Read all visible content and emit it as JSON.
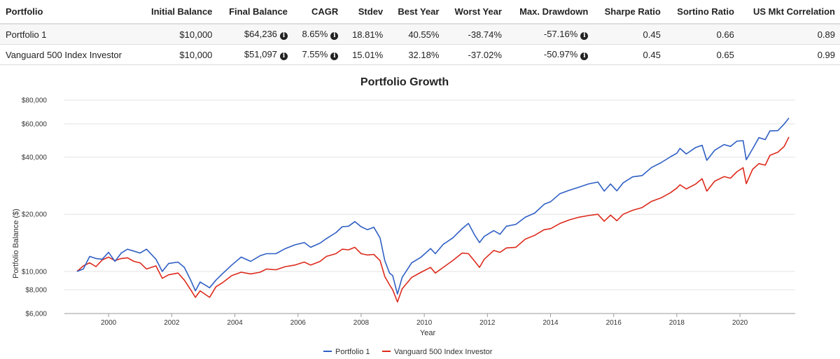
{
  "table": {
    "headers": [
      "Portfolio",
      "Initial Balance",
      "Final Balance",
      "CAGR",
      "Stdev",
      "Best Year",
      "Worst Year",
      "Max. Drawdown",
      "Sharpe Ratio",
      "Sortino Ratio",
      "US Mkt Correlation"
    ],
    "rows": [
      {
        "name": "Portfolio 1",
        "initial": "$10,000",
        "final": "$64,236",
        "cagr": "8.65%",
        "stdev": "18.81%",
        "best": "40.55%",
        "worst": "-38.74%",
        "maxdd": "-57.16%",
        "sharpe": "0.45",
        "sortino": "0.66",
        "corr": "0.89"
      },
      {
        "name": "Vanguard 500 Index Investor",
        "initial": "$10,000",
        "final": "$51,097",
        "cagr": "7.55%",
        "stdev": "15.01%",
        "best": "32.18%",
        "worst": "-37.02%",
        "maxdd": "-50.97%",
        "sharpe": "0.45",
        "sortino": "0.65",
        "corr": "0.99"
      }
    ],
    "info_glyph": "i"
  },
  "chart_data": {
    "type": "line",
    "title": "Portfolio Growth",
    "xlabel": "Year",
    "ylabel": "Portfolio Balance ($)",
    "yscale": "log",
    "ylim": [
      6000,
      80000
    ],
    "xlim": [
      1998.6,
      2021.75
    ],
    "yticks": [
      6000,
      8000,
      10000,
      20000,
      40000,
      60000,
      80000
    ],
    "ytick_labels": [
      "$6,000",
      "$8,000",
      "$10,000",
      "$20,000",
      "$40,000",
      "$60,000",
      "$80,000"
    ],
    "xticks": [
      2000,
      2002,
      2004,
      2006,
      2008,
      2010,
      2012,
      2014,
      2016,
      2018,
      2020
    ],
    "xtick_labels": [
      "2000",
      "2002",
      "2004",
      "2006",
      "2008",
      "2010",
      "2012",
      "2014",
      "2016",
      "2018",
      "2020"
    ],
    "legend_position": "bottom-center",
    "series": [
      {
        "name": "Portfolio 1",
        "color": "#2f5fc4",
        "points": [
          [
            1999.0,
            10000
          ],
          [
            1999.2,
            10300
          ],
          [
            1999.4,
            12000
          ],
          [
            1999.6,
            11700
          ],
          [
            1999.8,
            11600
          ],
          [
            2000.0,
            12600
          ],
          [
            2000.2,
            11300
          ],
          [
            2000.4,
            12500
          ],
          [
            2000.6,
            13100
          ],
          [
            2000.8,
            12800
          ],
          [
            2001.0,
            12500
          ],
          [
            2001.2,
            13100
          ],
          [
            2001.5,
            11600
          ],
          [
            2001.7,
            10000
          ],
          [
            2001.9,
            11000
          ],
          [
            2002.2,
            11200
          ],
          [
            2002.4,
            10500
          ],
          [
            2002.6,
            9000
          ],
          [
            2002.75,
            7900
          ],
          [
            2002.9,
            8800
          ],
          [
            2003.2,
            8200
          ],
          [
            2003.4,
            9000
          ],
          [
            2003.6,
            9700
          ],
          [
            2003.9,
            10800
          ],
          [
            2004.2,
            11900
          ],
          [
            2004.5,
            11300
          ],
          [
            2004.8,
            12100
          ],
          [
            2005.0,
            12400
          ],
          [
            2005.3,
            12400
          ],
          [
            2005.6,
            13200
          ],
          [
            2005.9,
            13800
          ],
          [
            2006.2,
            14200
          ],
          [
            2006.4,
            13400
          ],
          [
            2006.7,
            14100
          ],
          [
            2006.9,
            14900
          ],
          [
            2007.2,
            16000
          ],
          [
            2007.4,
            17200
          ],
          [
            2007.6,
            17300
          ],
          [
            2007.8,
            18300
          ],
          [
            2008.0,
            17200
          ],
          [
            2008.2,
            16600
          ],
          [
            2008.4,
            17100
          ],
          [
            2008.6,
            15000
          ],
          [
            2008.75,
            11400
          ],
          [
            2008.9,
            9800
          ],
          [
            2009.0,
            9500
          ],
          [
            2009.15,
            7600
          ],
          [
            2009.3,
            9300
          ],
          [
            2009.6,
            11100
          ],
          [
            2009.9,
            11900
          ],
          [
            2010.2,
            13200
          ],
          [
            2010.35,
            12400
          ],
          [
            2010.6,
            13900
          ],
          [
            2010.9,
            15000
          ],
          [
            2011.2,
            16800
          ],
          [
            2011.4,
            17900
          ],
          [
            2011.6,
            15500
          ],
          [
            2011.75,
            14200
          ],
          [
            2011.9,
            15300
          ],
          [
            2012.2,
            16400
          ],
          [
            2012.4,
            15700
          ],
          [
            2012.6,
            17300
          ],
          [
            2012.9,
            17700
          ],
          [
            2013.2,
            19300
          ],
          [
            2013.5,
            20300
          ],
          [
            2013.8,
            22600
          ],
          [
            2014.0,
            23300
          ],
          [
            2014.3,
            25700
          ],
          [
            2014.6,
            26800
          ],
          [
            2014.9,
            27800
          ],
          [
            2015.2,
            28900
          ],
          [
            2015.5,
            29600
          ],
          [
            2015.7,
            26500
          ],
          [
            2015.9,
            28900
          ],
          [
            2016.1,
            26600
          ],
          [
            2016.3,
            29300
          ],
          [
            2016.6,
            31500
          ],
          [
            2016.9,
            32000
          ],
          [
            2017.2,
            35300
          ],
          [
            2017.5,
            37400
          ],
          [
            2017.8,
            40200
          ],
          [
            2018.0,
            42000
          ],
          [
            2018.1,
            44500
          ],
          [
            2018.3,
            41600
          ],
          [
            2018.6,
            45000
          ],
          [
            2018.8,
            46200
          ],
          [
            2018.95,
            38500
          ],
          [
            2019.2,
            43500
          ],
          [
            2019.5,
            46600
          ],
          [
            2019.7,
            45600
          ],
          [
            2019.9,
            48600
          ],
          [
            2020.1,
            48900
          ],
          [
            2020.2,
            38800
          ],
          [
            2020.4,
            44200
          ],
          [
            2020.6,
            50700
          ],
          [
            2020.8,
            49500
          ],
          [
            2020.95,
            55000
          ],
          [
            2021.2,
            55200
          ],
          [
            2021.4,
            59800
          ],
          [
            2021.55,
            64236
          ]
        ]
      },
      {
        "name": "Vanguard 500 Index Investor",
        "color": "#dd2a1b",
        "points": [
          [
            1999.0,
            10000
          ],
          [
            1999.2,
            10700
          ],
          [
            1999.4,
            11100
          ],
          [
            1999.6,
            10600
          ],
          [
            1999.8,
            11500
          ],
          [
            2000.0,
            11900
          ],
          [
            2000.2,
            11400
          ],
          [
            2000.4,
            11700
          ],
          [
            2000.6,
            11800
          ],
          [
            2000.8,
            11300
          ],
          [
            2001.0,
            11100
          ],
          [
            2001.2,
            10300
          ],
          [
            2001.5,
            10700
          ],
          [
            2001.7,
            9200
          ],
          [
            2001.9,
            9600
          ],
          [
            2002.2,
            9800
          ],
          [
            2002.4,
            9000
          ],
          [
            2002.6,
            8000
          ],
          [
            2002.75,
            7300
          ],
          [
            2002.9,
            7900
          ],
          [
            2003.2,
            7300
          ],
          [
            2003.4,
            8300
          ],
          [
            2003.6,
            8700
          ],
          [
            2003.9,
            9500
          ],
          [
            2004.2,
            9900
          ],
          [
            2004.5,
            9700
          ],
          [
            2004.8,
            9900
          ],
          [
            2005.0,
            10300
          ],
          [
            2005.3,
            10200
          ],
          [
            2005.6,
            10600
          ],
          [
            2005.9,
            10800
          ],
          [
            2006.2,
            11200
          ],
          [
            2006.4,
            10800
          ],
          [
            2006.7,
            11300
          ],
          [
            2006.9,
            12000
          ],
          [
            2007.2,
            12400
          ],
          [
            2007.4,
            13100
          ],
          [
            2007.6,
            13000
          ],
          [
            2007.8,
            13400
          ],
          [
            2008.0,
            12400
          ],
          [
            2008.2,
            12200
          ],
          [
            2008.4,
            12300
          ],
          [
            2008.6,
            11400
          ],
          [
            2008.75,
            9400
          ],
          [
            2008.9,
            8500
          ],
          [
            2009.0,
            8000
          ],
          [
            2009.15,
            6900
          ],
          [
            2009.3,
            8100
          ],
          [
            2009.6,
            9300
          ],
          [
            2009.9,
            9900
          ],
          [
            2010.2,
            10500
          ],
          [
            2010.35,
            9800
          ],
          [
            2010.6,
            10500
          ],
          [
            2010.9,
            11400
          ],
          [
            2011.2,
            12500
          ],
          [
            2011.4,
            12400
          ],
          [
            2011.6,
            11300
          ],
          [
            2011.75,
            10500
          ],
          [
            2011.9,
            11600
          ],
          [
            2012.2,
            12900
          ],
          [
            2012.4,
            12600
          ],
          [
            2012.6,
            13300
          ],
          [
            2012.9,
            13400
          ],
          [
            2013.2,
            14800
          ],
          [
            2013.5,
            15500
          ],
          [
            2013.8,
            16600
          ],
          [
            2014.0,
            16800
          ],
          [
            2014.3,
            17900
          ],
          [
            2014.6,
            18700
          ],
          [
            2014.9,
            19300
          ],
          [
            2015.2,
            19700
          ],
          [
            2015.5,
            20000
          ],
          [
            2015.7,
            18400
          ],
          [
            2015.9,
            19800
          ],
          [
            2016.1,
            18500
          ],
          [
            2016.3,
            20000
          ],
          [
            2016.6,
            21000
          ],
          [
            2016.9,
            21700
          ],
          [
            2017.2,
            23400
          ],
          [
            2017.5,
            24400
          ],
          [
            2017.8,
            26000
          ],
          [
            2018.0,
            27500
          ],
          [
            2018.1,
            28600
          ],
          [
            2018.3,
            27200
          ],
          [
            2018.6,
            28900
          ],
          [
            2018.8,
            30800
          ],
          [
            2018.95,
            26500
          ],
          [
            2019.2,
            29900
          ],
          [
            2019.5,
            31600
          ],
          [
            2019.7,
            31000
          ],
          [
            2019.9,
            33500
          ],
          [
            2020.1,
            35200
          ],
          [
            2020.2,
            29000
          ],
          [
            2020.4,
            34500
          ],
          [
            2020.6,
            37000
          ],
          [
            2020.8,
            36300
          ],
          [
            2020.95,
            40900
          ],
          [
            2021.2,
            42500
          ],
          [
            2021.4,
            45500
          ],
          [
            2021.55,
            51097
          ]
        ]
      }
    ]
  }
}
